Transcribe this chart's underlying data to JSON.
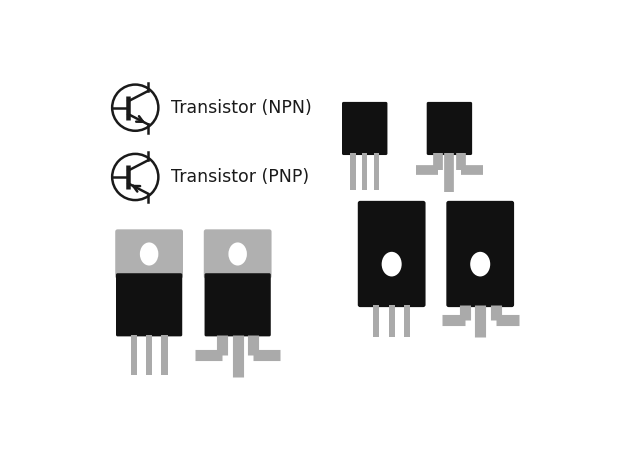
{
  "bg_color": "#ffffff",
  "line_color": "#1a1a1a",
  "gray_color": "#aaaaaa",
  "black_color": "#111111",
  "text_color": "#1a1a1a",
  "label_npn": "Transistor (NPN)",
  "label_pnp": "Transistor (PNP)",
  "font_size": 12.5,
  "gray_tab": "#b0b0b0"
}
